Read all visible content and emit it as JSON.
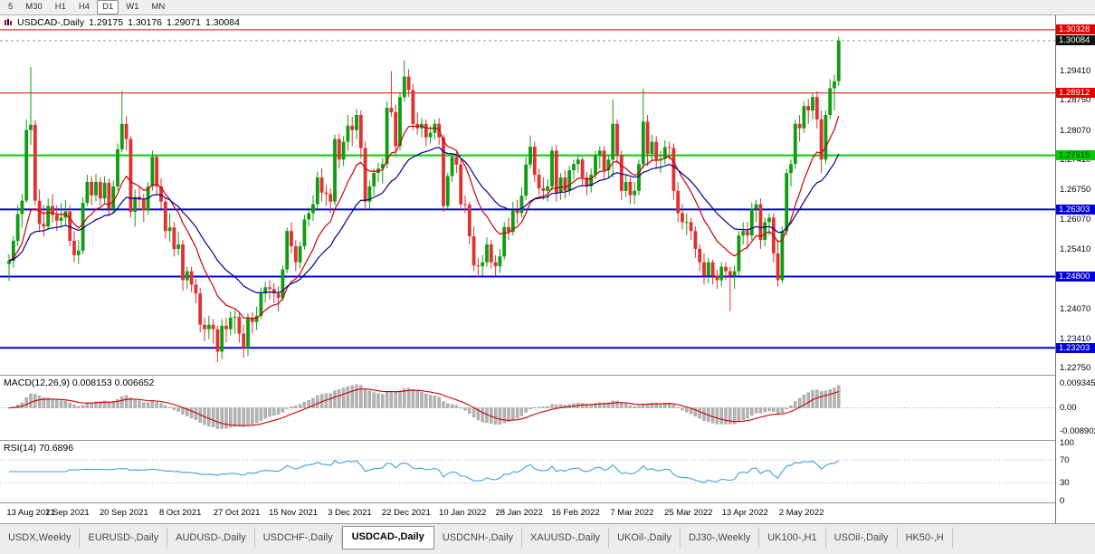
{
  "toolbar": {
    "timeframes": [
      {
        "label": "5",
        "active": false
      },
      {
        "label": "M30",
        "active": false
      },
      {
        "label": "H1",
        "active": false
      },
      {
        "label": "H4",
        "active": false
      },
      {
        "label": "D1",
        "active": true
      },
      {
        "label": "W1",
        "active": false
      },
      {
        "label": "MN",
        "active": false
      }
    ]
  },
  "chart": {
    "title": "USDCAD-,Daily",
    "ohlc": {
      "open": "1.29175",
      "high": "1.30176",
      "low": "1.29071",
      "close": "1.30084"
    },
    "current_price": {
      "label": "1.30084",
      "value": 1.30084
    },
    "axis_ticks": [
      "1.29410",
      "1.28750",
      "1.28070",
      "1.27410",
      "1.26750",
      "1.26070",
      "1.25410",
      "1.24070",
      "1.23410",
      "1.22750"
    ],
    "levels": [
      {
        "label": "1.30328",
        "value": 1.30328,
        "color": "#e00000",
        "width": 1,
        "text": "#ffffff"
      },
      {
        "label": "1.28912",
        "value": 1.28912,
        "color": "#e00000",
        "width": 1,
        "text": "#ffffff"
      },
      {
        "label": "1.27515",
        "value": 1.27515,
        "color": "#00cc00",
        "width": 2,
        "text": "#003300"
      },
      {
        "label": "1.26303",
        "value": 1.26303,
        "color": "#0000dd",
        "width": 2,
        "text": "#ffffff"
      },
      {
        "label": "1.24800",
        "value": 1.248,
        "color": "#0000dd",
        "width": 2,
        "text": "#ffffff"
      },
      {
        "label": "1.23203",
        "value": 1.23203,
        "color": "#0000dd",
        "width": 2,
        "text": "#ffffff"
      }
    ],
    "colors": {
      "up": "#0f9d0f",
      "down": "#e03030",
      "ma_fast": "#cc0000",
      "ma_slow": "#000090",
      "rsi_line": "#3da0dc",
      "macd_hist": "#b4b4b4",
      "macd_signal": "#cc0000",
      "background": "#ffffff"
    }
  },
  "macd": {
    "label": "MACD(12,26,9) 0.008153 0.006652",
    "axis": [
      "0.009345",
      "0.00",
      "-0.008902"
    ]
  },
  "rsi": {
    "label": "RSI(14) 70.6896",
    "axis": [
      "100",
      "70",
      "30",
      "0"
    ]
  },
  "tabs": [
    {
      "label": "USDX,Weekly",
      "active": false
    },
    {
      "label": "EURUSD-,Daily",
      "active": false
    },
    {
      "label": "AUDUSD-,Daily",
      "active": false
    },
    {
      "label": "USDCHF-,Daily",
      "active": false
    },
    {
      "label": "USDCAD-,Daily",
      "active": true
    },
    {
      "label": "USDCNH-,Daily",
      "active": false
    },
    {
      "label": "XAUUSD-,Daily",
      "active": false
    },
    {
      "label": "UKOil-,Daily",
      "active": false
    },
    {
      "label": "DJ30-,Weekly",
      "active": false
    },
    {
      "label": "UK100-,H1",
      "active": false
    },
    {
      "label": "USOil-,Daily",
      "active": false
    },
    {
      "label": "HK50-,H",
      "active": false
    }
  ],
  "chart_data": {
    "type": "candlestick",
    "symbol": "USDCAD-",
    "timeframe": "Daily",
    "last_ohlc": {
      "open": 1.29175,
      "high": 1.30176,
      "low": 1.29071,
      "close": 1.30084
    },
    "ylim": [
      1.226,
      1.3065
    ],
    "label_step": 13,
    "x_labels": [
      "13 Aug 2021",
      "1 Sep 2021",
      "20 Sep 2021",
      "8 Oct 2021",
      "27 Oct 2021",
      "15 Nov 2021",
      "3 Dec 2021",
      "22 Dec 2021",
      "10 Jan 2022",
      "28 Jan 2022",
      "16 Feb 2022",
      "7 Mar 2022",
      "25 Mar 2022",
      "13 Apr 2022",
      "2 May 2022"
    ],
    "levels": [
      1.30328,
      1.28912,
      1.27515,
      1.26303,
      1.248,
      1.23203
    ],
    "indicators": {
      "macd": [
        12,
        26,
        9
      ],
      "macd_values": [
        0.008153,
        0.006652
      ],
      "rsi": [
        14
      ],
      "rsi_value": 70.6896
    },
    "candles": [
      [
        1.2508,
        1.253,
        1.247,
        1.2515
      ],
      [
        1.2515,
        1.257,
        1.25,
        1.256
      ],
      [
        1.256,
        1.264,
        1.2548,
        1.262
      ],
      [
        1.262,
        1.2665,
        1.259,
        1.265
      ],
      [
        1.265,
        1.2832,
        1.2645,
        1.2808
      ],
      [
        1.2808,
        1.2949,
        1.2775,
        1.282
      ],
      [
        1.282,
        1.283,
        1.264,
        1.265
      ],
      [
        1.265,
        1.2675,
        1.258,
        1.2598
      ],
      [
        1.2598,
        1.264,
        1.257,
        1.2592
      ],
      [
        1.2592,
        1.2655,
        1.2585,
        1.2638
      ],
      [
        1.2638,
        1.2665,
        1.26,
        1.2618
      ],
      [
        1.2618,
        1.264,
        1.2582,
        1.2605
      ],
      [
        1.2605,
        1.2645,
        1.2592,
        1.2612
      ],
      [
        1.2612,
        1.2652,
        1.2595,
        1.2626
      ],
      [
        1.2626,
        1.264,
        1.2548,
        1.256
      ],
      [
        1.256,
        1.2582,
        1.2512,
        1.2528
      ],
      [
        1.2528,
        1.2562,
        1.2508,
        1.2538
      ],
      [
        1.2538,
        1.2658,
        1.253,
        1.2645
      ],
      [
        1.2645,
        1.2708,
        1.2638,
        1.2692
      ],
      [
        1.2692,
        1.2705,
        1.264,
        1.2662
      ],
      [
        1.2662,
        1.271,
        1.2648,
        1.2692
      ],
      [
        1.2692,
        1.2702,
        1.2638,
        1.2655
      ],
      [
        1.2655,
        1.2705,
        1.2642,
        1.269
      ],
      [
        1.269,
        1.27,
        1.2615,
        1.2632
      ],
      [
        1.2632,
        1.2695,
        1.262,
        1.2682
      ],
      [
        1.2682,
        1.2778,
        1.2672,
        1.2765
      ],
      [
        1.2765,
        1.2896,
        1.2758,
        1.2822
      ],
      [
        1.2822,
        1.284,
        1.2762,
        1.2788
      ],
      [
        1.2788,
        1.2795,
        1.2612,
        1.2625
      ],
      [
        1.2625,
        1.2675,
        1.2592,
        1.2658
      ],
      [
        1.2658,
        1.268,
        1.2628,
        1.2652
      ],
      [
        1.2652,
        1.2665,
        1.2602,
        1.2628
      ],
      [
        1.2628,
        1.2692,
        1.2618,
        1.2682
      ],
      [
        1.2682,
        1.2762,
        1.2672,
        1.2748
      ],
      [
        1.2748,
        1.2752,
        1.2662,
        1.2682
      ],
      [
        1.2682,
        1.27,
        1.2632,
        1.2648
      ],
      [
        1.2648,
        1.2658,
        1.2565,
        1.2582
      ],
      [
        1.2582,
        1.2622,
        1.2558,
        1.259
      ],
      [
        1.259,
        1.2602,
        1.2525,
        1.2542
      ],
      [
        1.2542,
        1.258,
        1.2528,
        1.2552
      ],
      [
        1.2552,
        1.2562,
        1.2448,
        1.2472
      ],
      [
        1.2472,
        1.2502,
        1.2452,
        1.2492
      ],
      [
        1.2492,
        1.2502,
        1.2445,
        1.2462
      ],
      [
        1.2462,
        1.2475,
        1.242,
        1.2442
      ],
      [
        1.2442,
        1.2455,
        1.2355,
        1.2372
      ],
      [
        1.2372,
        1.2388,
        1.2335,
        1.2362
      ],
      [
        1.2362,
        1.2392,
        1.234,
        1.2372
      ],
      [
        1.2372,
        1.2385,
        1.233,
        1.2362
      ],
      [
        1.2362,
        1.237,
        1.2288,
        1.2312
      ],
      [
        1.2312,
        1.2385,
        1.2295,
        1.237
      ],
      [
        1.237,
        1.2388,
        1.2332,
        1.2362
      ],
      [
        1.2362,
        1.2402,
        1.2348,
        1.2388
      ],
      [
        1.2388,
        1.2405,
        1.2352,
        1.239
      ],
      [
        1.239,
        1.2398,
        1.2332,
        1.2352
      ],
      [
        1.2352,
        1.2372,
        1.2298,
        1.232
      ],
      [
        1.232,
        1.2398,
        1.2302,
        1.2388
      ],
      [
        1.2388,
        1.24,
        1.2352,
        1.2378
      ],
      [
        1.2378,
        1.2412,
        1.236,
        1.2392
      ],
      [
        1.2392,
        1.2455,
        1.2385,
        1.2442
      ],
      [
        1.2442,
        1.2468,
        1.2422,
        1.2456
      ],
      [
        1.2456,
        1.2472,
        1.2428,
        1.2452
      ],
      [
        1.2452,
        1.2465,
        1.242,
        1.2442
      ],
      [
        1.2442,
        1.2458,
        1.2402,
        1.2432
      ],
      [
        1.2432,
        1.2505,
        1.2425,
        1.2496
      ],
      [
        1.2496,
        1.259,
        1.2488,
        1.2582
      ],
      [
        1.2582,
        1.2602,
        1.2532,
        1.2548
      ],
      [
        1.2548,
        1.2562,
        1.2492,
        1.2512
      ],
      [
        1.2512,
        1.2558,
        1.2498,
        1.2548
      ],
      [
        1.2548,
        1.2618,
        1.254,
        1.2608
      ],
      [
        1.2608,
        1.2635,
        1.2592,
        1.2622
      ],
      [
        1.2622,
        1.2662,
        1.2605,
        1.2642
      ],
      [
        1.2642,
        1.2715,
        1.2632,
        1.2702
      ],
      [
        1.2702,
        1.2722,
        1.2648,
        1.2668
      ],
      [
        1.2668,
        1.2685,
        1.2638,
        1.2665
      ],
      [
        1.2665,
        1.2678,
        1.2622,
        1.2648
      ],
      [
        1.2648,
        1.2798,
        1.264,
        1.2788
      ],
      [
        1.2788,
        1.28,
        1.2722,
        1.2742
      ],
      [
        1.2742,
        1.2795,
        1.2728,
        1.2782
      ],
      [
        1.2782,
        1.2842,
        1.2762,
        1.2818
      ],
      [
        1.2818,
        1.2838,
        1.2772,
        1.2808
      ],
      [
        1.2808,
        1.2855,
        1.2788,
        1.2842
      ],
      [
        1.2842,
        1.2852,
        1.2745,
        1.2768
      ],
      [
        1.2768,
        1.2782,
        1.2628,
        1.2648
      ],
      [
        1.2648,
        1.2695,
        1.2632,
        1.2682
      ],
      [
        1.2682,
        1.2722,
        1.2662,
        1.2712
      ],
      [
        1.2712,
        1.2735,
        1.2692,
        1.2722
      ],
      [
        1.2722,
        1.2745,
        1.2688,
        1.2732
      ],
      [
        1.2732,
        1.2872,
        1.2722,
        1.2858
      ],
      [
        1.2858,
        1.294,
        1.2838,
        1.2848
      ],
      [
        1.2848,
        1.2865,
        1.2752,
        1.2772
      ],
      [
        1.2772,
        1.2892,
        1.2762,
        1.2882
      ],
      [
        1.2882,
        1.2964,
        1.2872,
        1.2928
      ],
      [
        1.2928,
        1.2945,
        1.2882,
        1.2898
      ],
      [
        1.2898,
        1.2912,
        1.2808,
        1.2822
      ],
      [
        1.2822,
        1.2848,
        1.2798,
        1.2812
      ],
      [
        1.2812,
        1.2835,
        1.2792,
        1.2822
      ],
      [
        1.2822,
        1.2832,
        1.2772,
        1.2792
      ],
      [
        1.2792,
        1.2818,
        1.2778,
        1.2802
      ],
      [
        1.2802,
        1.2832,
        1.2788,
        1.2822
      ],
      [
        1.2822,
        1.2835,
        1.2775,
        1.2792
      ],
      [
        1.2792,
        1.2798,
        1.2625,
        1.2638
      ],
      [
        1.2638,
        1.2712,
        1.2632,
        1.2705
      ],
      [
        1.2705,
        1.2755,
        1.2692,
        1.2748
      ],
      [
        1.2748,
        1.2762,
        1.2712,
        1.2731
      ],
      [
        1.2731,
        1.2742,
        1.2628,
        1.2642
      ],
      [
        1.2642,
        1.2662,
        1.2622,
        1.2641
      ],
      [
        1.2641,
        1.2648,
        1.2552,
        1.257
      ],
      [
        1.257,
        1.2592,
        1.2492,
        1.2505
      ],
      [
        1.2505,
        1.2522,
        1.2478,
        1.2503
      ],
      [
        1.2503,
        1.2528,
        1.2482,
        1.2512
      ],
      [
        1.2512,
        1.2568,
        1.2502,
        1.2552
      ],
      [
        1.2552,
        1.2562,
        1.2498,
        1.2512
      ],
      [
        1.2512,
        1.2528,
        1.2482,
        1.2503
      ],
      [
        1.2503,
        1.2542,
        1.2488,
        1.2525
      ],
      [
        1.2525,
        1.2602,
        1.2518,
        1.2591
      ],
      [
        1.2591,
        1.2612,
        1.2562,
        1.258
      ],
      [
        1.258,
        1.2648,
        1.2572,
        1.2628
      ],
      [
        1.2628,
        1.2652,
        1.2598,
        1.2622
      ],
      [
        1.2622,
        1.268,
        1.2612,
        1.2661
      ],
      [
        1.2661,
        1.2748,
        1.2652,
        1.2731
      ],
      [
        1.2731,
        1.2796,
        1.2722,
        1.2771
      ],
      [
        1.2771,
        1.2782,
        1.2692,
        1.2708
      ],
      [
        1.2708,
        1.2722,
        1.2662,
        1.2678
      ],
      [
        1.2678,
        1.2702,
        1.2652,
        1.2672
      ],
      [
        1.2672,
        1.2698,
        1.2648,
        1.2682
      ],
      [
        1.2682,
        1.2772,
        1.2672,
        1.2762
      ],
      [
        1.2762,
        1.2775,
        1.2648,
        1.2668
      ],
      [
        1.2668,
        1.2712,
        1.2652,
        1.2702
      ],
      [
        1.2702,
        1.2718,
        1.2655,
        1.2672
      ],
      [
        1.2672,
        1.2728,
        1.2662,
        1.2718
      ],
      [
        1.2718,
        1.2742,
        1.2698,
        1.2732
      ],
      [
        1.2732,
        1.2752,
        1.2712,
        1.2742
      ],
      [
        1.2742,
        1.2748,
        1.2682,
        1.2702
      ],
      [
        1.2702,
        1.2715,
        1.2662,
        1.2682
      ],
      [
        1.2682,
        1.2722,
        1.2668,
        1.2708
      ],
      [
        1.2708,
        1.2762,
        1.2698,
        1.2752
      ],
      [
        1.2752,
        1.2772,
        1.2722,
        1.2762
      ],
      [
        1.2762,
        1.2772,
        1.2698,
        1.2718
      ],
      [
        1.2718,
        1.2752,
        1.2702,
        1.2742
      ],
      [
        1.2742,
        1.2877,
        1.2702,
        1.2822
      ],
      [
        1.2822,
        1.2832,
        1.2732,
        1.2752
      ],
      [
        1.2752,
        1.2762,
        1.2652,
        1.2672
      ],
      [
        1.2672,
        1.2708,
        1.2658,
        1.2692
      ],
      [
        1.2692,
        1.2702,
        1.2642,
        1.2662
      ],
      [
        1.2662,
        1.2692,
        1.2642,
        1.2672
      ],
      [
        1.2672,
        1.2742,
        1.2662,
        1.2732
      ],
      [
        1.2732,
        1.2901,
        1.2722,
        1.2827
      ],
      [
        1.2827,
        1.2842,
        1.2728,
        1.2755
      ],
      [
        1.2755,
        1.2798,
        1.2738,
        1.2782
      ],
      [
        1.2782,
        1.2795,
        1.2722,
        1.2742
      ],
      [
        1.2742,
        1.2762,
        1.2712,
        1.2744
      ],
      [
        1.2744,
        1.2785,
        1.2732,
        1.277
      ],
      [
        1.277,
        1.2782,
        1.2742,
        1.2768
      ],
      [
        1.2768,
        1.2778,
        1.2652,
        1.2672
      ],
      [
        1.2672,
        1.2692,
        1.2602,
        1.2622
      ],
      [
        1.2622,
        1.2642,
        1.2586,
        1.2602
      ],
      [
        1.2602,
        1.2622,
        1.2572,
        1.2602
      ],
      [
        1.2602,
        1.2612,
        1.2562,
        1.2582
      ],
      [
        1.2582,
        1.2592,
        1.2522,
        1.2542
      ],
      [
        1.2542,
        1.2552,
        1.2492,
        1.2512
      ],
      [
        1.2512,
        1.2532,
        1.2462,
        1.2482
      ],
      [
        1.2482,
        1.2522,
        1.2465,
        1.2512
      ],
      [
        1.2512,
        1.2518,
        1.2462,
        1.2482
      ],
      [
        1.2482,
        1.2495,
        1.2452,
        1.2472
      ],
      [
        1.2472,
        1.2512,
        1.2458,
        1.2502
      ],
      [
        1.2502,
        1.2512,
        1.2472,
        1.2492
      ],
      [
        1.2492,
        1.2502,
        1.2402,
        1.2482
      ],
      [
        1.2482,
        1.2505,
        1.2452,
        1.2492
      ],
      [
        1.2492,
        1.2582,
        1.2482,
        1.2572
      ],
      [
        1.2572,
        1.2602,
        1.2552,
        1.2582
      ],
      [
        1.2582,
        1.2602,
        1.2542,
        1.2572
      ],
      [
        1.2572,
        1.2645,
        1.2562,
        1.2632
      ],
      [
        1.2632,
        1.2652,
        1.2602,
        1.2642
      ],
      [
        1.2642,
        1.2655,
        1.2542,
        1.2562
      ],
      [
        1.2562,
        1.2612,
        1.2548,
        1.2602
      ],
      [
        1.2602,
        1.2622,
        1.2572,
        1.2612
      ],
      [
        1.2612,
        1.2622,
        1.2512,
        1.2532
      ],
      [
        1.2532,
        1.2562,
        1.2458,
        1.2472
      ],
      [
        1.2472,
        1.2592,
        1.2465,
        1.2582
      ],
      [
        1.2582,
        1.2722,
        1.2572,
        1.2712
      ],
      [
        1.2712,
        1.2742,
        1.2682,
        1.2732
      ],
      [
        1.2732,
        1.2832,
        1.2722,
        1.2822
      ],
      [
        1.2822,
        1.2842,
        1.2782,
        1.2812
      ],
      [
        1.2812,
        1.2872,
        1.2802,
        1.2862
      ],
      [
        1.2862,
        1.2878,
        1.2822,
        1.2852
      ],
      [
        1.2852,
        1.2892,
        1.2832,
        1.2882
      ],
      [
        1.2882,
        1.2895,
        1.2812,
        1.2832
      ],
      [
        1.2832,
        1.2852,
        1.2712,
        1.2742
      ],
      [
        1.2742,
        1.2852,
        1.2732,
        1.2842
      ],
      [
        1.2842,
        1.2922,
        1.2832,
        1.2902
      ],
      [
        1.2902,
        1.2932,
        1.2852,
        1.2917
      ],
      [
        1.29175,
        1.30176,
        1.29071,
        1.30084
      ]
    ]
  }
}
